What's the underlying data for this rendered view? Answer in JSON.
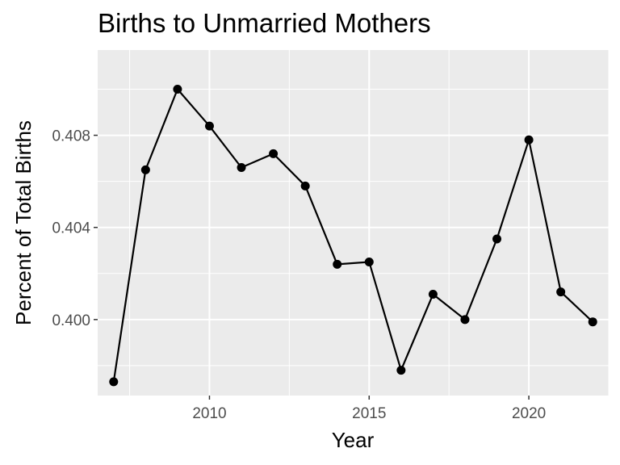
{
  "chart_data": {
    "type": "line",
    "title": "Births to Unmarried Mothers",
    "xlabel": "Year",
    "ylabel": "Percent of Total Births",
    "xlim": [
      2006.5,
      2022.5
    ],
    "ylim": [
      0.3967,
      0.4117
    ],
    "x_ticks": [
      2010,
      2015,
      2020
    ],
    "y_ticks": [
      0.4,
      0.404,
      0.408
    ],
    "x_tick_labels": [
      "2010",
      "2015",
      "2020"
    ],
    "y_tick_labels": [
      "0.400",
      "0.404",
      "0.408"
    ],
    "grid": true,
    "legend": "none",
    "colors": {
      "panel": "#ebebeb",
      "grid": "#ffffff",
      "line": "#000000",
      "point": "#000000"
    },
    "series": [
      {
        "x": [
          2007,
          2008,
          2009,
          2010,
          2011,
          2012,
          2013,
          2014,
          2015,
          2016,
          2017,
          2018,
          2019,
          2020,
          2021,
          2022
        ],
        "y": [
          0.3973,
          0.4065,
          0.41,
          0.4084,
          0.4066,
          0.4072,
          0.4058,
          0.4024,
          0.4025,
          0.3978,
          0.4011,
          0.4,
          0.4035,
          0.4078,
          0.4012,
          0.3999
        ]
      }
    ]
  }
}
